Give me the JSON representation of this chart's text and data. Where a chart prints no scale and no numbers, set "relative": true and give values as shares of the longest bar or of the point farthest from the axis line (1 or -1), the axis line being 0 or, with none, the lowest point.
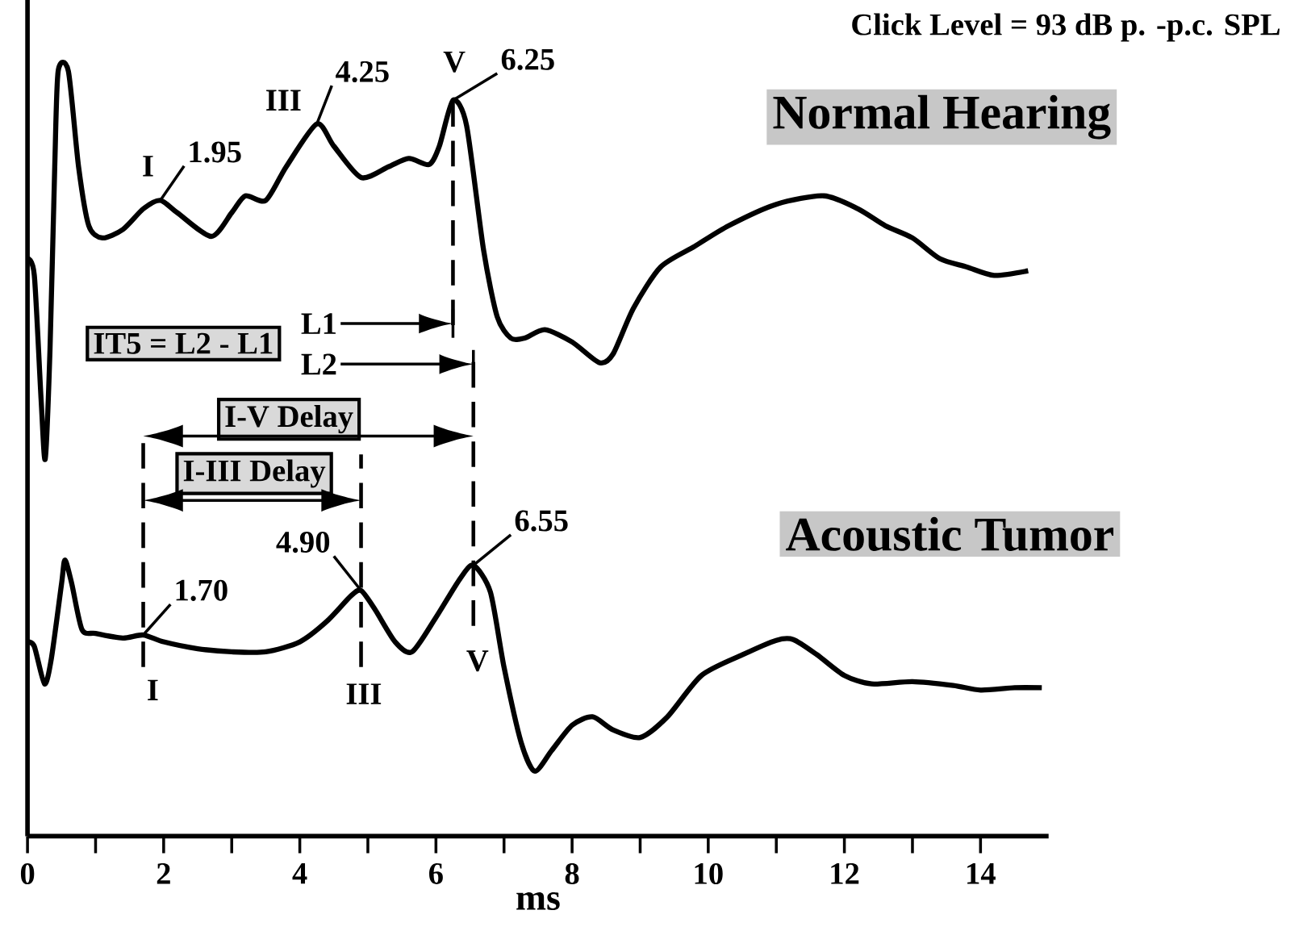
{
  "chart_data": {
    "type": "line",
    "relative": true,
    "xlabel": "ms",
    "xlim": [
      0,
      15
    ],
    "xticks": [
      0,
      2,
      4,
      6,
      8,
      10,
      12,
      14
    ],
    "legend": false,
    "grid": false,
    "marker": "none",
    "line_style": "solid",
    "series": [
      {
        "name": "Normal Hearing",
        "color": "#000000",
        "x": [
          0,
          0.1,
          0.2,
          0.26,
          0.33,
          0.4,
          0.45,
          0.6,
          0.75,
          0.9,
          1.1,
          1.4,
          1.7,
          1.95,
          2.2,
          2.7,
          3.0,
          3.2,
          3.5,
          3.8,
          4.25,
          4.5,
          4.9,
          5.3,
          5.6,
          5.9,
          6.05,
          6.25,
          6.45,
          6.7,
          6.9,
          7.1,
          7.3,
          7.6,
          8.0,
          8.4,
          8.6,
          8.9,
          9.3,
          9.8,
          10.3,
          11.0,
          11.7,
          12.2,
          12.6,
          13.0,
          13.4,
          13.8,
          14.2,
          14.7
        ],
        "values": [
          0.755,
          0.733,
          0.57,
          0.493,
          0.635,
          0.875,
          1.0,
          1.0,
          0.875,
          0.798,
          0.782,
          0.793,
          0.82,
          0.831,
          0.815,
          0.784,
          0.815,
          0.837,
          0.831,
          0.875,
          0.931,
          0.902,
          0.861,
          0.875,
          0.886,
          0.878,
          0.902,
          0.962,
          0.929,
          0.766,
          0.679,
          0.651,
          0.651,
          0.662,
          0.646,
          0.619,
          0.63,
          0.69,
          0.744,
          0.771,
          0.798,
          0.826,
          0.837,
          0.82,
          0.798,
          0.782,
          0.755,
          0.744,
          0.733,
          0.739
        ]
      },
      {
        "name": "Acoustic Tumor",
        "color": "#000000",
        "x": [
          0,
          0.1,
          0.25,
          0.35,
          0.5,
          0.55,
          0.65,
          0.8,
          1.0,
          1.4,
          1.7,
          2.0,
          2.5,
          3.0,
          3.5,
          4.0,
          4.4,
          4.75,
          4.9,
          5.1,
          5.4,
          5.65,
          6.0,
          6.35,
          6.55,
          6.8,
          7.0,
          7.25,
          7.45,
          7.7,
          8.0,
          8.3,
          8.6,
          9.0,
          9.4,
          9.9,
          10.5,
          11.0,
          11.25,
          11.6,
          12.0,
          12.4,
          13.0,
          13.6,
          14.0,
          14.5,
          14.9
        ],
        "values": [
          0.254,
          0.248,
          0.199,
          0.232,
          0.33,
          0.361,
          0.33,
          0.27,
          0.265,
          0.259,
          0.263,
          0.254,
          0.245,
          0.241,
          0.241,
          0.254,
          0.281,
          0.314,
          0.321,
          0.297,
          0.254,
          0.241,
          0.286,
          0.336,
          0.354,
          0.319,
          0.221,
          0.123,
          0.085,
          0.112,
          0.145,
          0.156,
          0.139,
          0.129,
          0.156,
          0.21,
          0.237,
          0.256,
          0.257,
          0.237,
          0.21,
          0.199,
          0.202,
          0.197,
          0.191,
          0.194,
          0.194
        ]
      }
    ],
    "ref_lines": [
      {
        "axis": "x",
        "value": 1.7,
        "line_style": "dashed"
      },
      {
        "axis": "x",
        "value": 4.9,
        "line_style": "dashed"
      },
      {
        "axis": "x",
        "value": 6.25,
        "line_style": "dashed"
      },
      {
        "axis": "x",
        "value": 6.55,
        "line_style": "dashed"
      }
    ],
    "annotations": [
      "Click Level = 93 dB p. -p.c. SPL",
      {
        "text": "I",
        "x": 1.95,
        "y": 0.831
      },
      {
        "text": "1.95",
        "x": 1.95,
        "y": 0.831
      },
      {
        "text": "III",
        "x": 4.25,
        "y": 0.931
      },
      {
        "text": "4.25",
        "x": 4.25,
        "y": 0.931
      },
      {
        "text": "V",
        "x": 6.25,
        "y": 0.962
      },
      {
        "text": "6.25",
        "x": 6.25,
        "y": 0.962
      },
      "L1",
      "L2",
      "IT5 = L2 - L1",
      "I-V Delay",
      "I-III Delay",
      {
        "text": "1.70",
        "x": 1.7,
        "y": 0.263
      },
      {
        "text": "4.90",
        "x": 4.9,
        "y": 0.321
      },
      {
        "text": "6.55",
        "x": 6.55,
        "y": 0.354
      },
      {
        "text": "I",
        "x": 1.7,
        "y": 0.263
      },
      {
        "text": "III",
        "x": 4.9,
        "y": 0.321
      },
      {
        "text": "V",
        "x": 6.55,
        "y": 0.354
      }
    ]
  }
}
